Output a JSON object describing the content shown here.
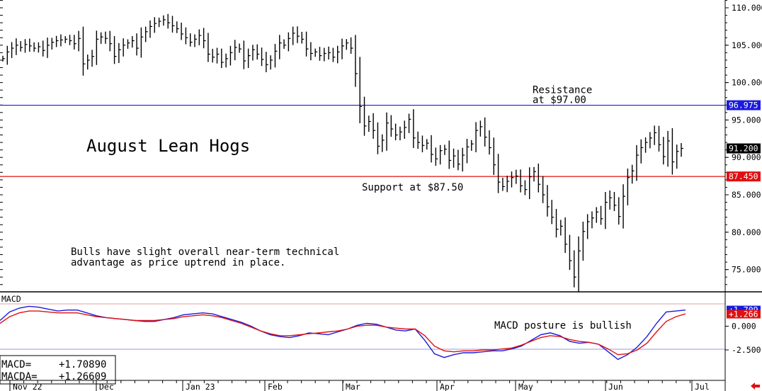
{
  "chart_data": [
    {
      "type": "ohlc",
      "title": "August Lean Hogs",
      "annotation": [
        "Bulls have slight overall near-term technical",
        "advantage as price uptrend in place."
      ],
      "ylim": [
        72,
        111
      ],
      "y_ticks": [
        "110.000",
        "105.000",
        "100.000",
        "95.000",
        "90.000",
        "85.000",
        "80.000",
        "75.000"
      ],
      "x_labels": [
        "Nov 22",
        "Dec",
        "Jan 23",
        "Feb",
        "Mar",
        "Apr",
        "May",
        "Jun",
        "Jul"
      ],
      "last_price": "91.200",
      "lines": [
        {
          "label": [
            "Resistance",
            "at $97.00"
          ],
          "value": 96.975,
          "tag": "96.975",
          "color": "#1a1adc"
        },
        {
          "label": [
            "Support at $87.50"
          ],
          "value": 87.45,
          "tag": "87.450",
          "color": "#e01010"
        }
      ],
      "closes": [
        103.2,
        104.1,
        104.6,
        105.0,
        104.7,
        105.1,
        104.9,
        104.6,
        104.8,
        104.3,
        105.0,
        105.4,
        105.6,
        105.7,
        105.8,
        105.6,
        105.2,
        105.9,
        102.5,
        103.0,
        103.5,
        105.8,
        106.1,
        105.9,
        105.2,
        103.5,
        104.4,
        105.0,
        105.3,
        105.6,
        104.6,
        106.1,
        106.8,
        107.5,
        107.9,
        108.2,
        108.4,
        108.0,
        107.6,
        107.2,
        106.5,
        106.0,
        105.4,
        105.8,
        106.3,
        105.6,
        103.8,
        103.4,
        103.8,
        102.7,
        103.2,
        104.0,
        104.7,
        104.5,
        102.9,
        103.6,
        104.4,
        103.8,
        103.1,
        102.4,
        103.0,
        104.2,
        105.3,
        105.0,
        105.9,
        106.6,
        106.2,
        105.8,
        104.5,
        103.9,
        104.1,
        103.6,
        103.9,
        104.0,
        103.4,
        104.1,
        104.9,
        105.3,
        104.6,
        101.2,
        96.8,
        94.2,
        94.8,
        93.6,
        91.5,
        92.3,
        94.6,
        93.8,
        93.0,
        93.4,
        94.0,
        95.1,
        92.6,
        92.0,
        91.6,
        91.9,
        90.4,
        89.8,
        90.9,
        91.1,
        89.6,
        90.2,
        89.1,
        90.3,
        91.4,
        91.8,
        93.6,
        94.1,
        92.7,
        91.3,
        89.0,
        86.7,
        86.1,
        86.8,
        87.3,
        87.5,
        86.2,
        85.7,
        87.4,
        88.1,
        86.4,
        85.0,
        83.4,
        82.0,
        80.4,
        80.8,
        78.4,
        76.2,
        74.0,
        77.5,
        80.1,
        81.4,
        81.9,
        82.7,
        81.8,
        84.0,
        84.6,
        83.6,
        82.1,
        84.8,
        87.3,
        88.2,
        90.3,
        91.3,
        92.0,
        92.6,
        93.3,
        91.7,
        90.1,
        92.2,
        89.4,
        90.8,
        91.2
      ],
      "start_date": "2022-11-21",
      "end_date": "2023-06-23"
    },
    {
      "type": "line",
      "title": "MACD",
      "annotation": "MACD posture is bullish",
      "ylim": [
        -4.0,
        3.0
      ],
      "y_ticks": [
        "0.000",
        "-2.500"
      ],
      "series": [
        {
          "name": "MACD",
          "color": "#1a1adc",
          "values": [
            0.6,
            1.5,
            1.9,
            2.1,
            2.0,
            1.8,
            1.6,
            1.7,
            1.7,
            1.4,
            1.1,
            0.9,
            0.8,
            0.7,
            0.6,
            0.5,
            0.5,
            0.7,
            0.9,
            1.2,
            1.3,
            1.4,
            1.3,
            1.0,
            0.7,
            0.4,
            0.0,
            -0.5,
            -0.9,
            -1.1,
            -1.2,
            -1.0,
            -0.7,
            -0.8,
            -0.9,
            -0.6,
            -0.3,
            0.1,
            0.3,
            0.2,
            -0.1,
            -0.4,
            -0.5,
            -0.3,
            -1.5,
            -2.9,
            -3.3,
            -3.0,
            -2.8,
            -2.8,
            -2.7,
            -2.6,
            -2.6,
            -2.4,
            -2.1,
            -1.5,
            -0.9,
            -0.7,
            -1.0,
            -1.6,
            -1.8,
            -1.7,
            -1.9,
            -2.7,
            -3.5,
            -3.0,
            -2.2,
            -1.1,
            0.3,
            1.5,
            1.6,
            1.7
          ]
        },
        {
          "name": "MACDA",
          "color": "#e01010",
          "values": [
            0.3,
            1.0,
            1.4,
            1.6,
            1.6,
            1.5,
            1.4,
            1.4,
            1.4,
            1.2,
            1.0,
            0.9,
            0.8,
            0.7,
            0.6,
            0.6,
            0.6,
            0.7,
            0.8,
            1.0,
            1.1,
            1.2,
            1.1,
            0.9,
            0.6,
            0.3,
            -0.1,
            -0.5,
            -0.8,
            -1.0,
            -1.0,
            -0.9,
            -0.8,
            -0.7,
            -0.6,
            -0.5,
            -0.3,
            0.0,
            0.1,
            0.1,
            -0.1,
            -0.2,
            -0.3,
            -0.3,
            -1.0,
            -2.1,
            -2.6,
            -2.7,
            -2.6,
            -2.6,
            -2.5,
            -2.5,
            -2.4,
            -2.3,
            -2.0,
            -1.6,
            -1.2,
            -1.0,
            -1.1,
            -1.4,
            -1.6,
            -1.7,
            -1.9,
            -2.4,
            -3.0,
            -2.9,
            -2.5,
            -1.8,
            -0.6,
            0.5,
            1.0,
            1.3
          ]
        }
      ],
      "tags": [
        {
          "text": "+1.709",
          "value": 1.709,
          "color": "#1a1adc"
        },
        {
          "text": "+1.266",
          "value": 1.266,
          "color": "#e01010"
        }
      ],
      "readout": {
        "macd_label": "MACD=",
        "macd_value": "+1.70890",
        "macda_label": "MACDA=",
        "macda_value": "+1.26609"
      }
    }
  ]
}
